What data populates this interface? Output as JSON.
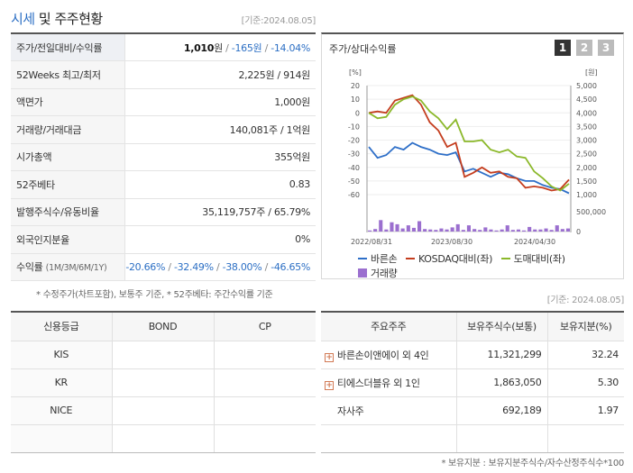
{
  "header": {
    "title_main": "시세",
    "title_mid": "및",
    "title_sub": "주주현황",
    "base_date": "[기준:2024.08.05]"
  },
  "info_rows": {
    "price": {
      "label": "주가/전일대비/수익률",
      "price": "1,010",
      "change": "-165",
      "rate": "-14.04%",
      "unit": "원"
    },
    "week52": {
      "label": "52Weeks 최고/최저",
      "value": "2,225원 / 914원"
    },
    "par": {
      "label": "액면가",
      "value": "1,000원"
    },
    "volume": {
      "label": "거래량/거래대금",
      "value": "140,081주 / 1억원"
    },
    "mcap": {
      "label": "시가총액",
      "value": "355억원"
    },
    "beta": {
      "label": "52주베타",
      "value": "0.83"
    },
    "shares": {
      "label": "발행주식수/유동비율",
      "value": "35,119,757주 / 65.79%"
    },
    "foreign": {
      "label": "외국인지분율",
      "value": "0%"
    },
    "returns": {
      "label": "수익률",
      "label_sub": "(1M/3M/6M/1Y)",
      "values": [
        "-20.66%",
        "-32.49%",
        "-38.00%",
        "-46.65%"
      ]
    }
  },
  "footnote": "* 수정주가(차트포함), 보통주 기준, * 52주베타: 주간수익률 기준",
  "chart_box": {
    "title": "주가/상대수익률",
    "tabs": [
      "1",
      "2",
      "3"
    ]
  },
  "chart_data": {
    "type": "line",
    "y_left_unit": "[%]",
    "y_right_unit": "[원]",
    "y_left_ticks": [
      "20",
      "10",
      "0",
      "-10",
      "-20",
      "-30",
      "-40",
      "-50",
      "-60"
    ],
    "y_right_ticks": [
      "5,000",
      "4,500",
      "4,000",
      "3,500",
      "3,000",
      "2,500",
      "2,000",
      "1,500",
      "1,000"
    ],
    "vol_ticks": [
      "500,000",
      "0"
    ],
    "x_ticks": [
      "2022/08/31",
      "2023/08/30",
      "2024/04/30"
    ],
    "ylim": [
      -60,
      20
    ],
    "series": [
      {
        "name": "바른손",
        "color": "#2e6fc8",
        "values": [
          -25,
          -33,
          -31,
          -25,
          -27,
          -22,
          -25,
          -27,
          -30,
          -31,
          -29,
          -43,
          -41,
          -44,
          -47,
          -44,
          -45,
          -48,
          -50,
          -50,
          -53,
          -55,
          -56,
          -59
        ]
      },
      {
        "name": "KOSDAQ대비(좌)",
        "color": "#c43d1e",
        "values": [
          0,
          1,
          0,
          9,
          11,
          13,
          6,
          -7,
          -13,
          -25,
          -22,
          -47,
          -44,
          -40,
          -44,
          -43,
          -47,
          -48,
          -55,
          -54,
          -55,
          -57,
          -56,
          -49
        ]
      },
      {
        "name": "도매대비(좌)",
        "color": "#8bb82a",
        "values": [
          0,
          -4,
          -3,
          6,
          10,
          12,
          9,
          1,
          -4,
          -12,
          -5,
          -21,
          -21,
          -20,
          -27,
          -29,
          -27,
          -32,
          -33,
          -43,
          -48,
          -54,
          -57,
          -52
        ]
      }
    ],
    "volume": {
      "name": "거래량",
      "color": "#9b6fcf",
      "values": [
        0.05,
        0.12,
        0.55,
        0.1,
        0.45,
        0.35,
        0.15,
        0.3,
        0.18,
        0.5,
        0.12,
        0.1,
        0.08,
        0.15,
        0.1,
        0.2,
        0.35,
        0.08,
        0.3,
        0.12,
        0.08,
        0.2,
        0.1,
        0.05,
        0.1,
        0.3,
        0.08,
        0.1,
        0.05,
        0.22,
        0.1,
        0.1,
        0.15,
        0.08,
        0.3,
        0.12,
        0.15
      ]
    }
  },
  "base_date_2": "[기준: 2024.08.05]",
  "credit_table": {
    "headers": [
      "신용등급",
      "BOND",
      "CP"
    ],
    "rows": [
      [
        "KIS",
        "",
        ""
      ],
      [
        "KR",
        "",
        ""
      ],
      [
        "NICE",
        "",
        ""
      ],
      [
        "",
        "",
        ""
      ]
    ]
  },
  "holder_table": {
    "headers": [
      "주요주주",
      "보유주식수(보통)",
      "보유지분(%)"
    ],
    "rows": [
      {
        "name": "바른손이앤에이 외 4인",
        "shares": "11,321,299",
        "pct": "32.24",
        "expand": true
      },
      {
        "name": "티에스더블유 외 1인",
        "shares": "1,863,050",
        "pct": "5.30",
        "expand": true
      },
      {
        "name": "자사주",
        "shares": "692,189",
        "pct": "1.97",
        "expand": false
      },
      {
        "name": "",
        "shares": "",
        "pct": "",
        "expand": false
      }
    ]
  },
  "footnote2": "* 보유지분 : 보유지분주식수/자수산정주식수*100",
  "colors": {
    "accent": "#2c6fc4",
    "negative": "#2c6fc4"
  }
}
